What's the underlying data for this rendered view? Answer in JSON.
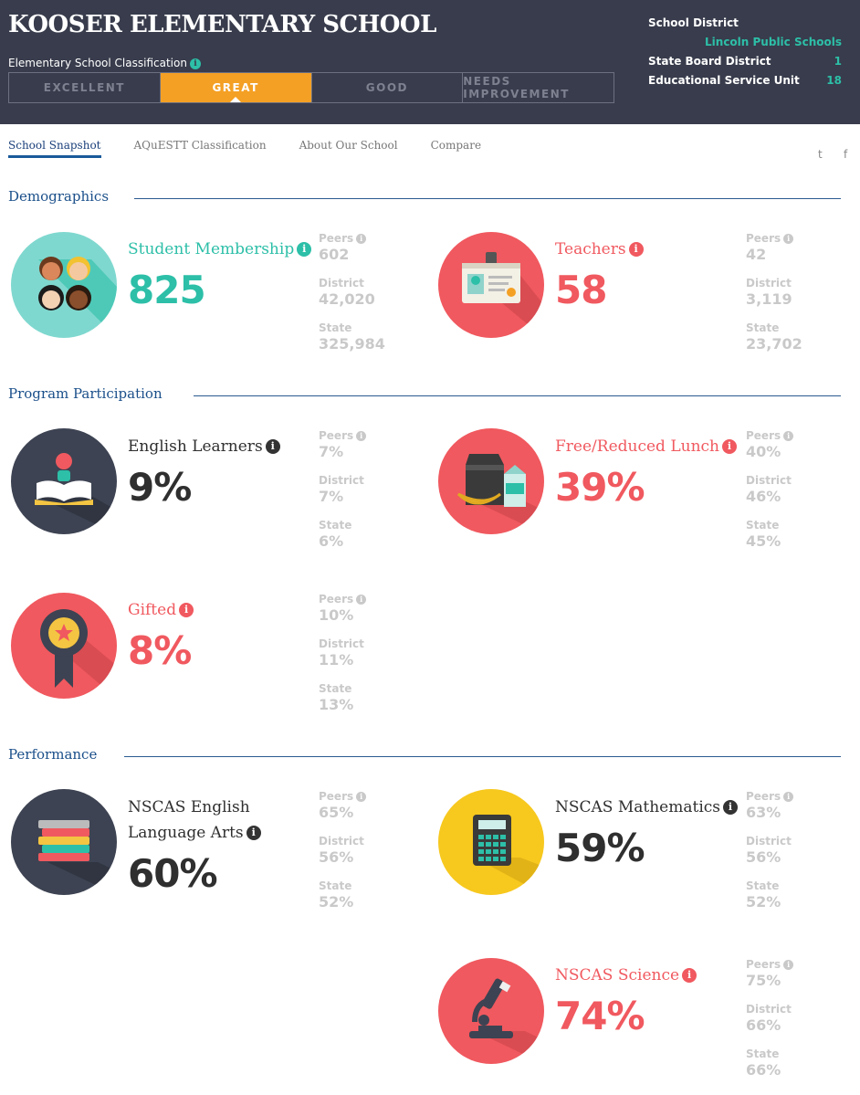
{
  "header": {
    "school_name": "KOOSER ELEMENTARY SCHOOL",
    "classification_label": "Elementary School Classification",
    "classifications": [
      "EXCELLENT",
      "GREAT",
      "GOOD",
      "NEEDS IMPROVEMENT"
    ],
    "district_label": "School District",
    "district_value": "Lincoln Public Schools",
    "state_board_label": "State Board District",
    "state_board_value": "1",
    "esu_label": "Educational Service Unit",
    "esu_value": "18"
  },
  "nav": {
    "tabs": [
      "School Snapshot",
      "AQuESTT Classification",
      "About Our School",
      "Compare"
    ],
    "twitter": "t",
    "facebook": "f"
  },
  "common": {
    "info_glyph": "i",
    "peers": "Peers",
    "district": "District",
    "state": "State"
  },
  "sections": {
    "demographics": "Demographics",
    "program": "Program Participation",
    "performance": "Performance"
  },
  "stats": {
    "students": {
      "label": "Student Membership",
      "value": "825",
      "peers": "602",
      "district": "42,020",
      "state": "325,984"
    },
    "teachers": {
      "label": "Teachers",
      "value": "58",
      "peers": "42",
      "district": "3,119",
      "state": "23,702"
    },
    "ell": {
      "label": "English Learners",
      "value": "9%",
      "peers": "7%",
      "district": "7%",
      "state": "6%"
    },
    "frl": {
      "label": "Free/Reduced Lunch",
      "value": "39%",
      "peers": "40%",
      "district": "46%",
      "state": "45%"
    },
    "gifted": {
      "label": "Gifted",
      "value": "8%",
      "peers": "10%",
      "district": "11%",
      "state": "13%"
    },
    "ela": {
      "label_line1": "NSCAS English",
      "label_line2": "Language Arts",
      "value": "60%",
      "peers": "65%",
      "district": "56%",
      "state": "52%"
    },
    "math": {
      "label": "NSCAS Mathematics",
      "value": "59%",
      "peers": "63%",
      "district": "56%",
      "state": "52%"
    },
    "science": {
      "label": "NSCAS Science",
      "value": "74%",
      "peers": "75%",
      "district": "66%",
      "state": "66%"
    }
  },
  "colors": {
    "header_bg": "#383c4c",
    "accent_orange": "#f4a024",
    "teal": "#2dbfa8",
    "red": "#f0595f",
    "dark": "#2f2f2f",
    "navy": "#1a4f8a"
  }
}
